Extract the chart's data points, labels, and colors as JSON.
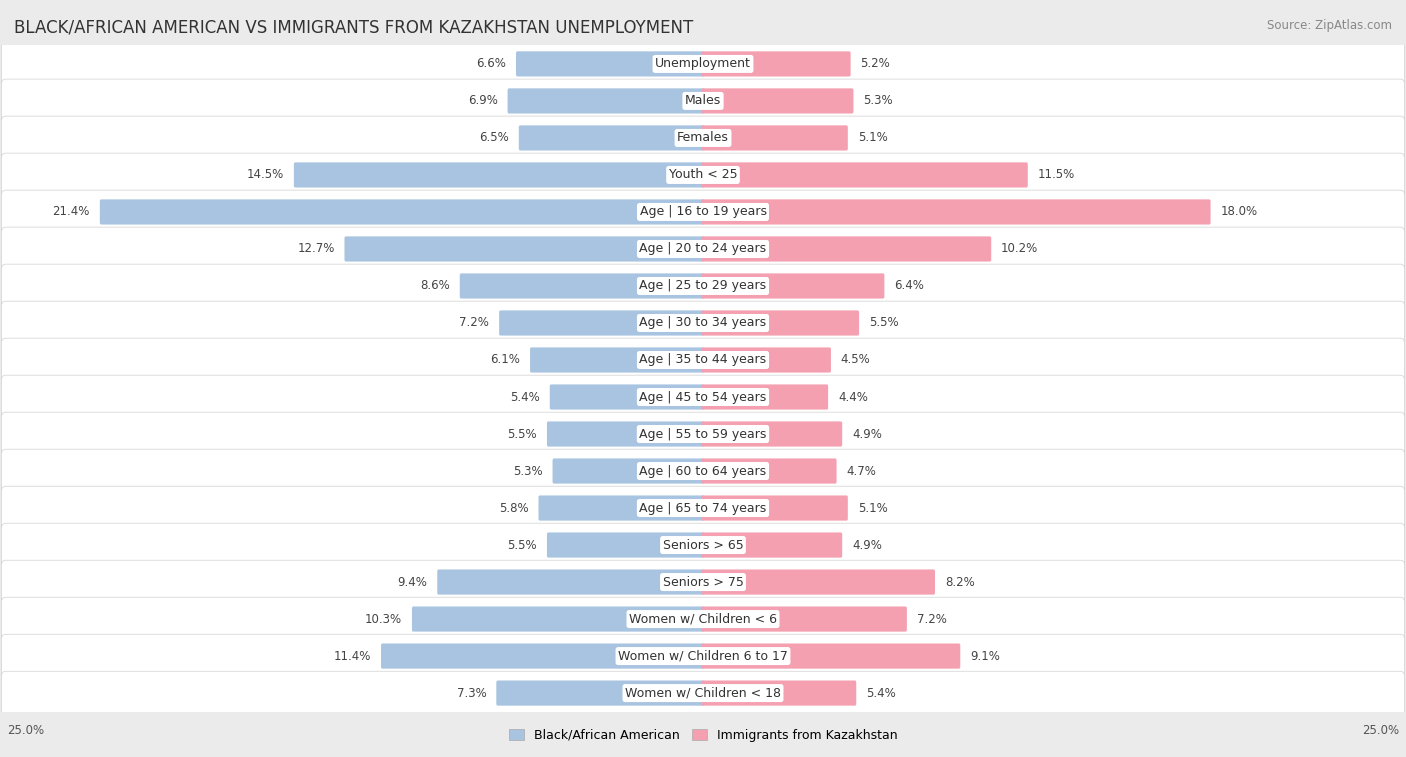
{
  "title": "BLACK/AFRICAN AMERICAN VS IMMIGRANTS FROM KAZAKHSTAN UNEMPLOYMENT",
  "source": "Source: ZipAtlas.com",
  "categories": [
    "Unemployment",
    "Males",
    "Females",
    "Youth < 25",
    "Age | 16 to 19 years",
    "Age | 20 to 24 years",
    "Age | 25 to 29 years",
    "Age | 30 to 34 years",
    "Age | 35 to 44 years",
    "Age | 45 to 54 years",
    "Age | 55 to 59 years",
    "Age | 60 to 64 years",
    "Age | 65 to 74 years",
    "Seniors > 65",
    "Seniors > 75",
    "Women w/ Children < 6",
    "Women w/ Children 6 to 17",
    "Women w/ Children < 18"
  ],
  "left_values": [
    6.6,
    6.9,
    6.5,
    14.5,
    21.4,
    12.7,
    8.6,
    7.2,
    6.1,
    5.4,
    5.5,
    5.3,
    5.8,
    5.5,
    9.4,
    10.3,
    11.4,
    7.3
  ],
  "right_values": [
    5.2,
    5.3,
    5.1,
    11.5,
    18.0,
    10.2,
    6.4,
    5.5,
    4.5,
    4.4,
    4.9,
    4.7,
    5.1,
    4.9,
    8.2,
    7.2,
    9.1,
    5.4
  ],
  "left_color": "#a8c4e0",
  "right_color": "#f4a0b0",
  "bar_height": 0.58,
  "max_val": 25.0,
  "bg_color": "#ebebeb",
  "row_bg_color": "#ffffff",
  "label_fontsize": 9.0,
  "value_fontsize": 8.5,
  "title_fontsize": 12,
  "source_fontsize": 8.5,
  "legend_label_left": "Black/African American",
  "legend_label_right": "Immigrants from Kazakhstan",
  "axis_label": "25.0%"
}
